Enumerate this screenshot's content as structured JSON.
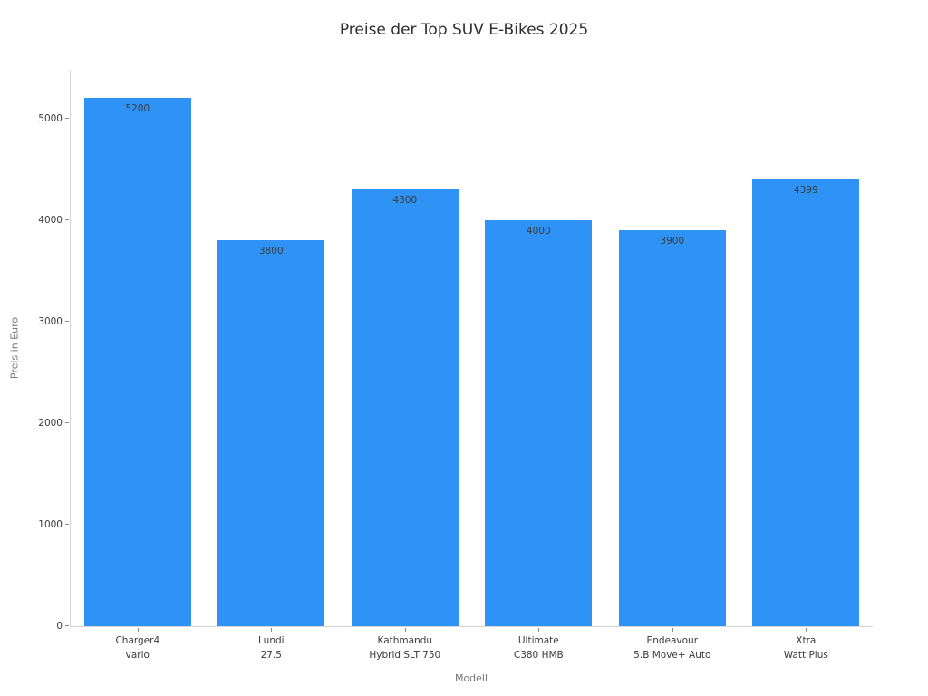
{
  "chart_data": {
    "type": "bar",
    "title": "Preise der Top SUV E-Bikes 2025",
    "xlabel": "Modell",
    "ylabel": "Preis in Euro",
    "categories": [
      "Charger4\nvario",
      "Lundi\n27.5",
      "Kathmandu\nHybrid SLT 750",
      "Ultimate\nC380 HMB",
      "Endeavour\n5.B Move+ Auto",
      "Xtra\nWatt Plus"
    ],
    "values": [
      5200,
      3800,
      4300,
      4000,
      3900,
      4399
    ],
    "value_labels_shown": true,
    "bar_color": "#2e93f5",
    "value_label_color": "#3a3a3a",
    "yticks": [
      0,
      1000,
      2000,
      3000,
      4000,
      5000
    ],
    "ylim": [
      0,
      5480
    ],
    "grid": false,
    "legend": null,
    "bar_width_fraction": 0.8
  }
}
